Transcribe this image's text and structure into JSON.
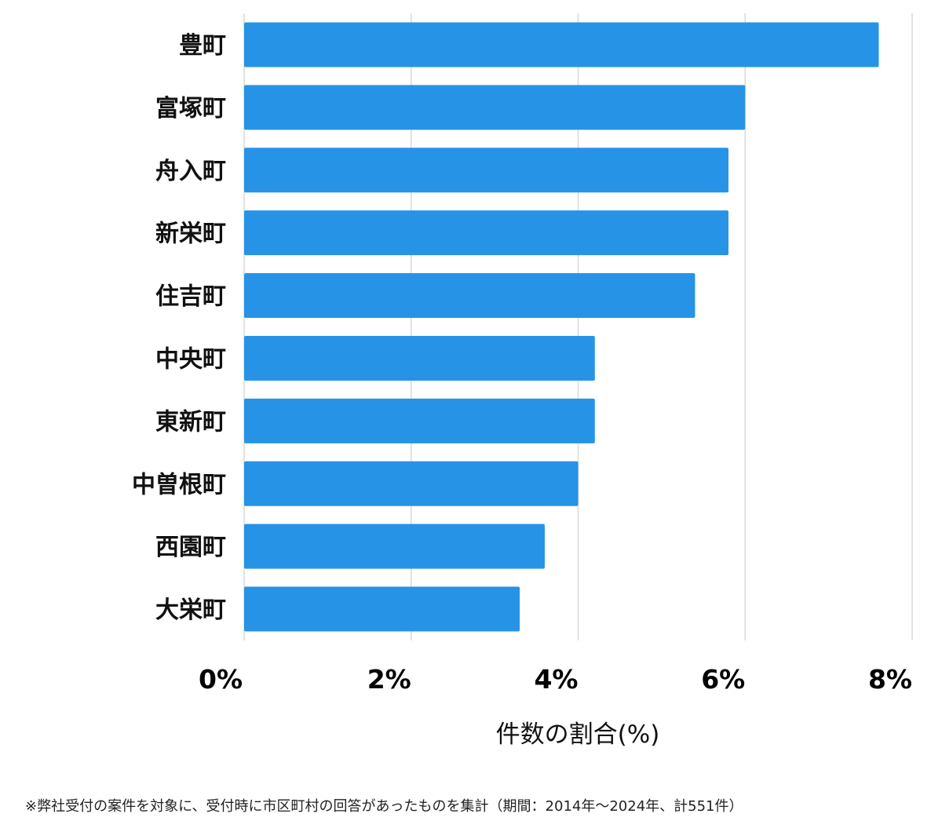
{
  "chart_data": {
    "type": "bar",
    "orientation": "horizontal",
    "categories": [
      "豊町",
      "富塚町",
      "舟入町",
      "新栄町",
      "住吉町",
      "中央町",
      "東新町",
      "中曽根町",
      "西園町",
      "大栄町"
    ],
    "values": [
      7.6,
      6.0,
      5.8,
      5.8,
      5.4,
      4.2,
      4.2,
      4.0,
      3.6,
      3.3
    ],
    "xlim": [
      0,
      8
    ],
    "xticks": [
      "0%",
      "2%",
      "4%",
      "6%",
      "8%"
    ],
    "xlabel": "件数の割合(%)",
    "ylabel": "",
    "title": "",
    "grid": true,
    "bar_color": "#2693e6",
    "grid_color": "#d9d9d9"
  },
  "footnote": "※弊社受付の案件を対象に、受付時に市区町村の回答があったものを集計（期間：2014年～2024年、計551件）"
}
